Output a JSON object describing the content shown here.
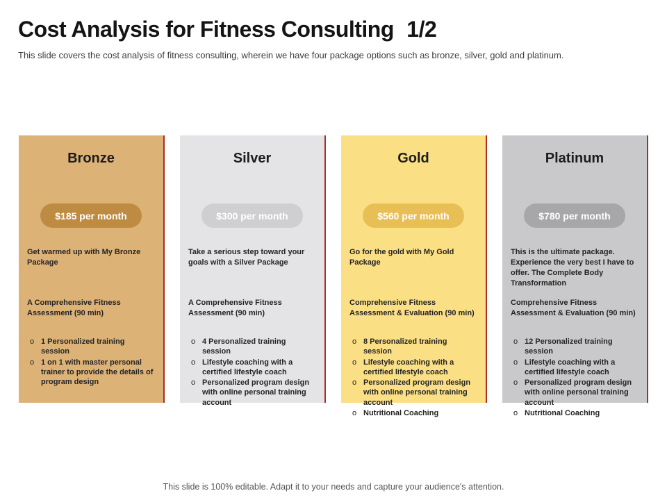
{
  "header": {
    "title": "Cost Analysis for Fitness Consulting",
    "page_indicator": "1/2",
    "subtitle": "This slide covers the cost analysis of fitness consulting, wherein we have four package options such as bronze, silver, gold and platinum."
  },
  "bullet_marker": "o",
  "colors": {
    "accent_line": "#b02a26"
  },
  "packages": [
    {
      "name": "Bronze",
      "price": "$185 per month",
      "description": "Get warmed up with My Bronze Package",
      "feature": "A Comprehensive Fitness Assessment (90 min)",
      "bullets": [
        "1 Personalized training session",
        "1 on 1 with master personal trainer to provide the details of program design"
      ],
      "colors": {
        "bg": "#ddb277",
        "pill": "#bd8c42"
      }
    },
    {
      "name": "Silver",
      "price": "$300 per month",
      "description": "Take a serious step toward your goals with a Silver Package",
      "feature": "A Comprehensive Fitness Assessment (90 min)",
      "bullets": [
        "4 Personalized training session",
        "Lifestyle coaching with a certified lifestyle coach",
        "Personalized program design with online personal training account"
      ],
      "colors": {
        "bg": "#e4e4e6",
        "pill": "#cfcfd1"
      }
    },
    {
      "name": "Gold",
      "price": "$560 per month",
      "description": "Go for the gold with My Gold Package",
      "feature": "Comprehensive Fitness Assessment & Evaluation (90 min)",
      "bullets": [
        "8 Personalized training session",
        "Lifestyle coaching with a certified lifestyle coach",
        "Personalized program design with online personal training account",
        "Nutritional Coaching"
      ],
      "colors": {
        "bg": "#fbdf85",
        "pill": "#e7bf55"
      }
    },
    {
      "name": "Platinum",
      "price": "$780 per month",
      "description": "This is the ultimate package. Experience the very best I have to offer. The Complete Body Transformation",
      "feature": "Comprehensive Fitness Assessment & Evaluation (90 min)",
      "bullets": [
        "12 Personalized training session",
        "Lifestyle coaching with a certified lifestyle coach",
        "Personalized program design with online personal training account",
        "Nutritional Coaching"
      ],
      "colors": {
        "bg": "#c9c9cb",
        "pill": "#a7a7a9"
      }
    }
  ],
  "footer": {
    "text": "This slide is 100% editable. Adapt it to your needs and capture your audience's attention."
  }
}
